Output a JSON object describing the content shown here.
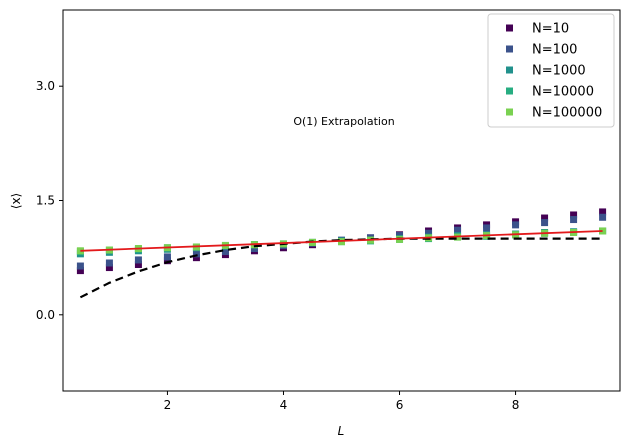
{
  "chart_data": {
    "type": "scatter",
    "title": "",
    "xlabel": "L",
    "ylabel": "⟨x⟩",
    "xlim": [
      0.2,
      9.8
    ],
    "ylim": [
      -1.0,
      4.0
    ],
    "xticks": [
      2,
      4,
      6,
      8
    ],
    "yticks": [
      0.0,
      1.5,
      3.0
    ],
    "ytick_labels": [
      "0.0",
      "1.5",
      "3.0"
    ],
    "legend_position": "top-right",
    "annotation": "O(1) Extrapolation",
    "x": [
      0.5,
      1.0,
      1.5,
      2.0,
      2.5,
      3.0,
      3.5,
      4.0,
      4.5,
      5.0,
      5.5,
      6.0,
      6.5,
      7.0,
      7.5,
      8.0,
      8.5,
      9.0,
      9.5
    ],
    "series": [
      {
        "name": "N=10",
        "color": "#440154",
        "values": [
          0.58,
          0.62,
          0.66,
          0.71,
          0.75,
          0.79,
          0.84,
          0.88,
          0.92,
          0.97,
          1.01,
          1.05,
          1.1,
          1.14,
          1.18,
          1.22,
          1.27,
          1.31,
          1.35
        ]
      },
      {
        "name": "N=100",
        "color": "#3b528b",
        "values": [
          0.64,
          0.68,
          0.72,
          0.76,
          0.8,
          0.83,
          0.87,
          0.91,
          0.94,
          0.98,
          1.01,
          1.04,
          1.07,
          1.11,
          1.14,
          1.18,
          1.21,
          1.25,
          1.28
        ]
      },
      {
        "name": "N=1000",
        "color": "#21918c",
        "values": [
          0.8,
          0.82,
          0.84,
          0.86,
          0.88,
          0.9,
          0.92,
          0.93,
          0.95,
          0.97,
          0.98,
          1.0,
          1.02,
          1.04,
          1.05,
          1.06,
          1.08,
          1.09,
          1.1
        ]
      },
      {
        "name": "N=10000",
        "color": "#27ad81",
        "values": [
          0.83,
          0.85,
          0.86,
          0.88,
          0.89,
          0.91,
          0.92,
          0.93,
          0.95,
          0.96,
          0.97,
          0.99,
          1.0,
          1.02,
          1.03,
          1.05,
          1.07,
          1.08,
          1.1
        ]
      },
      {
        "name": "N=100000",
        "color": "#7ad151",
        "values": [
          0.84,
          0.85,
          0.87,
          0.88,
          0.89,
          0.91,
          0.92,
          0.93,
          0.95,
          0.96,
          0.98,
          0.99,
          1.01,
          1.02,
          1.04,
          1.05,
          1.07,
          1.08,
          1.1
        ]
      }
    ],
    "fit_line": {
      "color": "#e31a1c",
      "x": [
        0.5,
        9.5
      ],
      "y": [
        0.84,
        1.1
      ]
    },
    "reference_curve": {
      "color": "#000000",
      "x": [
        0.5,
        1.0,
        1.5,
        2.0,
        2.5,
        3.0,
        3.5,
        4.0,
        4.5,
        5.0,
        5.5,
        6.0,
        6.5,
        7.0,
        7.5,
        8.0,
        8.5,
        9.0,
        9.5
      ],
      "y": [
        0.23,
        0.42,
        0.57,
        0.69,
        0.78,
        0.85,
        0.9,
        0.93,
        0.96,
        0.98,
        0.99,
        1.0,
        1.0,
        1.0,
        1.0,
        1.0,
        1.0,
        1.0,
        1.0
      ]
    }
  }
}
